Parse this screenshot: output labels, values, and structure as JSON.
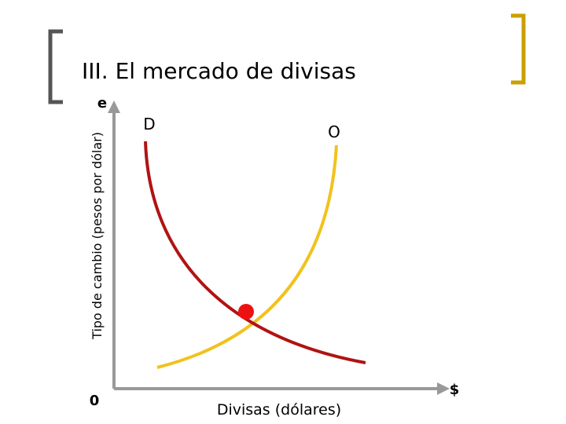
{
  "header": {
    "title": "III. El mercado de divisas"
  },
  "diagram": {
    "y_axis_label": "Tipo de cambio (pesos por dólar)",
    "y_axis_symbol": "e",
    "origin": "0",
    "x_axis_symbol": "$",
    "x_axis_label": "Divisas (dólares)",
    "curves": [
      {
        "label": "D"
      },
      {
        "label": "O"
      }
    ]
  }
}
